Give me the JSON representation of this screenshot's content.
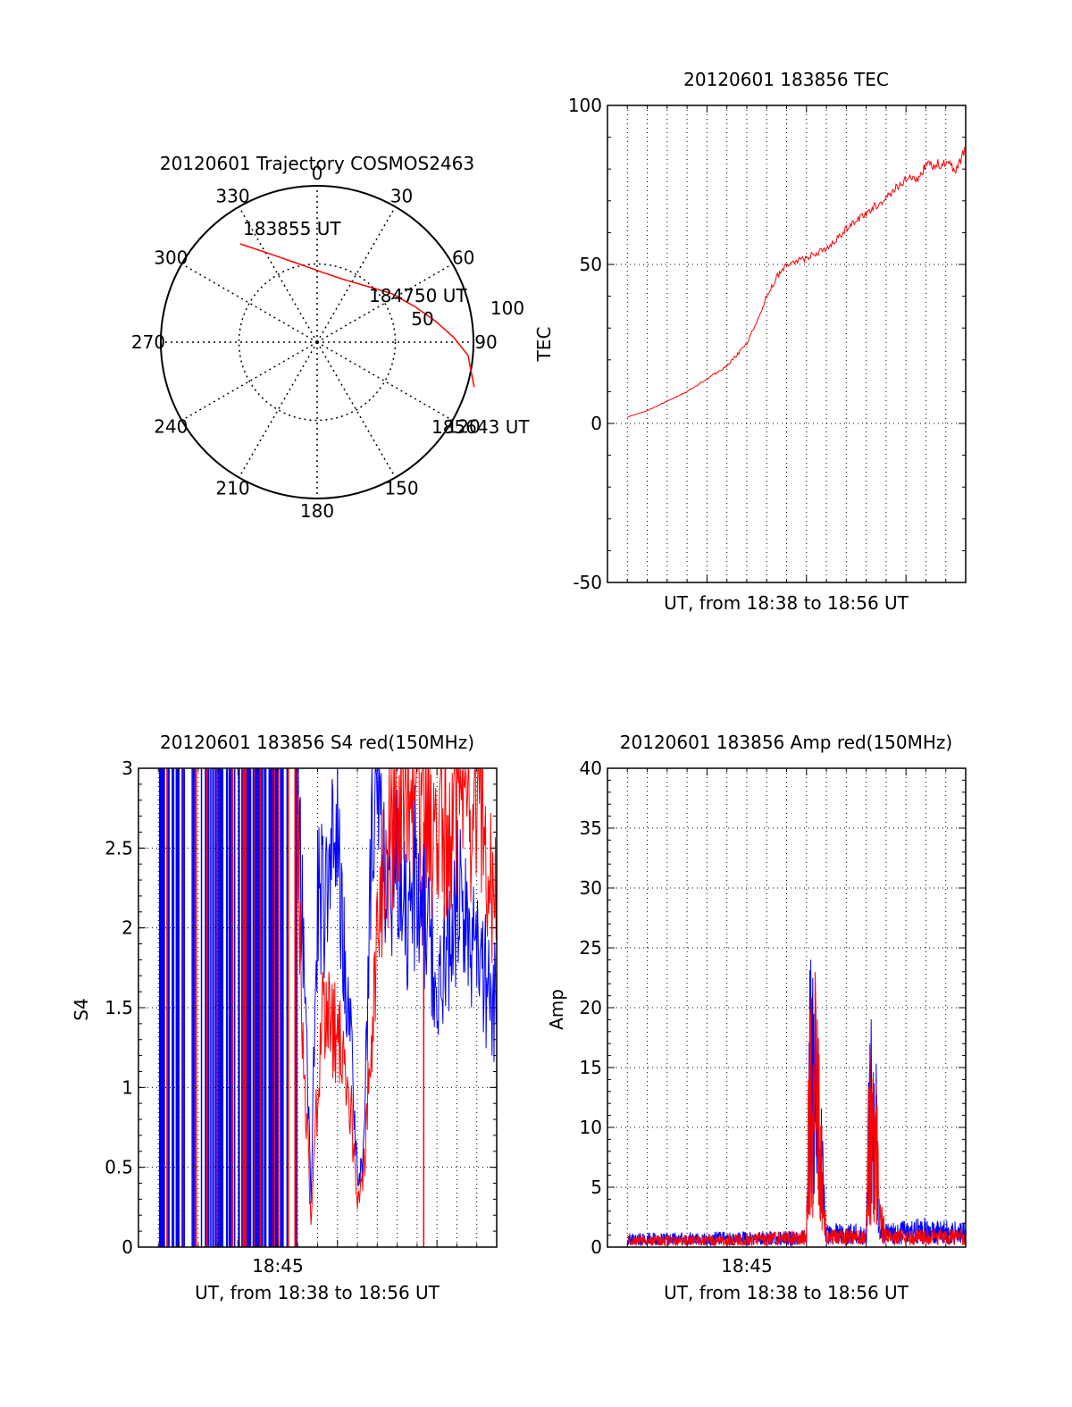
{
  "colors": {
    "trace_red": "#ff0000",
    "trace_blue": "#0000ff",
    "axis": "#000000",
    "grid": "#000000"
  },
  "chart_data": [
    {
      "type": "polar",
      "title": "20120601 Trajectory COSMOS2463",
      "azimuth_labels": [
        "0",
        "30",
        "60",
        "90",
        "120",
        "150",
        "180",
        "210",
        "240",
        "270",
        "300",
        "330"
      ],
      "radius_labels": [
        "50",
        "100"
      ],
      "trajectory": [
        {
          "az": 322,
          "zenith": 84
        },
        {
          "az": 333,
          "zenith": 66
        },
        {
          "az": 347,
          "zenith": 54
        },
        {
          "az": 5,
          "zenith": 47
        },
        {
          "az": 25,
          "zenith": 46
        },
        {
          "az": 43,
          "zenith": 51
        },
        {
          "az": 57,
          "zenith": 60
        },
        {
          "az": 70,
          "zenith": 70
        },
        {
          "az": 80,
          "zenith": 81
        },
        {
          "az": 88,
          "zenith": 92
        },
        {
          "az": 95,
          "zenith": 102
        },
        {
          "az": 106,
          "zenith": 116
        }
      ],
      "annotations": [
        {
          "text": "183855 UT",
          "az": 330,
          "zenith": 88
        },
        {
          "text": "184750 UT",
          "az": 58,
          "zenith": 67
        },
        {
          "text": "185643 UT",
          "az": 108,
          "zenith": 117
        }
      ]
    },
    {
      "type": "line",
      "title": "20120601 183856 TEC",
      "xlabel": "UT, from 18:38 to 18:56 UT",
      "ylabel": "TEC",
      "xlim": [
        "18:38",
        "18:56"
      ],
      "ylim": [
        -50,
        100
      ],
      "yticks": [
        "-50",
        "0",
        "50",
        "100"
      ],
      "grid": true,
      "series": [
        {
          "x": [
            "18:39:00",
            "18:40:00",
            "18:41:00",
            "18:42:00",
            "18:43:00",
            "18:44:00",
            "18:45:00",
            "18:45:30",
            "18:46:00",
            "18:46:30",
            "18:47:00",
            "18:47:30",
            "18:48:00",
            "18:49:00",
            "18:50:00",
            "18:51:00",
            "18:52:00",
            "18:53:00",
            "18:53:30",
            "18:54:00",
            "18:55:00",
            "18:55:30",
            "18:56:00"
          ],
          "values": [
            2,
            4,
            7,
            10,
            14,
            18,
            25,
            32,
            40,
            46,
            50,
            51,
            52,
            55,
            61,
            66,
            71,
            77,
            76,
            81,
            82,
            80,
            86
          ]
        }
      ]
    },
    {
      "type": "line",
      "title": "20120601 183856 S4 red(150MHz)",
      "xlabel": "UT, from 18:38 to 18:56 UT",
      "ylabel": "S4",
      "xlim": [
        "18:38",
        "18:56"
      ],
      "ylim": [
        0,
        3
      ],
      "yticks": [
        "0",
        "0.5",
        "1",
        "1.5",
        "2",
        "2.5",
        "3"
      ],
      "xticks": [
        "18:45"
      ],
      "grid": true,
      "series": [
        {
          "x": [
            "18:46:00",
            "18:46:20",
            "18:46:40",
            "18:47:00",
            "18:47:20",
            "18:47:40",
            "18:48:00",
            "18:48:20",
            "18:48:40",
            "18:49:00",
            "18:49:20",
            "18:49:40",
            "18:50:00",
            "18:50:30",
            "18:51:00",
            "18:51:30",
            "18:52:00",
            "18:53:00",
            "18:54:00",
            "18:55:00",
            "18:56:00"
          ],
          "values": [
            2.4,
            1.2,
            0.15,
            1.0,
            1.5,
            1.4,
            1.3,
            1.2,
            0.9,
            0.25,
            0.5,
            1.3,
            1.8,
            2.5,
            2.8,
            2.9,
            3.0,
            2.6,
            2.8,
            2.9,
            2.2
          ]
        },
        {
          "x": [
            "18:46:00",
            "18:46:20",
            "18:46:40",
            "18:47:00",
            "18:47:20",
            "18:47:40",
            "18:48:00",
            "18:48:20",
            "18:48:40",
            "18:49:00",
            "18:49:20",
            "18:49:40",
            "18:50:00",
            "18:50:30",
            "18:51:00",
            "18:51:30",
            "18:52:00",
            "18:53:00",
            "18:54:00",
            "18:55:00",
            "18:56:00"
          ],
          "values": [
            2.9,
            1.6,
            0.35,
            2.2,
            2.1,
            2.4,
            2.6,
            1.8,
            1.4,
            0.4,
            0.6,
            2.5,
            3.0,
            2.1,
            2.3,
            2.0,
            2.4,
            1.6,
            2.2,
            1.8,
            1.5
          ]
        }
      ]
    },
    {
      "type": "line",
      "title": "20120601 183856 Amp red(150MHz)",
      "xlabel": "UT, from 18:38 to 18:56 UT",
      "ylabel": "Amp",
      "xlim": [
        "18:38",
        "18:56"
      ],
      "ylim": [
        0,
        40
      ],
      "yticks": [
        "0",
        "5",
        "10",
        "15",
        "20",
        "25",
        "30",
        "35",
        "40"
      ],
      "xticks": [
        "18:45"
      ],
      "grid": true,
      "series": [
        {
          "x": [
            "18:39:00",
            "18:44:00",
            "18:48:00",
            "18:48:10",
            "18:48:20",
            "18:48:30",
            "18:48:40",
            "18:49:00",
            "18:50:00",
            "18:51:00",
            "18:51:10",
            "18:51:20",
            "18:51:30",
            "18:51:40",
            "18:52:00",
            "18:54:00",
            "18:56:00"
          ],
          "values": [
            1,
            1,
            1.5,
            25,
            24,
            26,
            14,
            1.5,
            1.5,
            1.5,
            18,
            17,
            16,
            5,
            1.5,
            1.5,
            1.5
          ]
        },
        {
          "x": [
            "18:39:00",
            "18:44:00",
            "18:48:00",
            "18:48:10",
            "18:48:20",
            "18:48:30",
            "18:48:40",
            "18:49:00",
            "18:50:00",
            "18:51:00",
            "18:51:10",
            "18:51:20",
            "18:51:30",
            "18:51:40",
            "18:52:00",
            "18:54:00",
            "18:56:00"
          ],
          "values": [
            1.2,
            1.3,
            1.4,
            25,
            23,
            22,
            15,
            2,
            2,
            2,
            20,
            19,
            17,
            3,
            2,
            2.5,
            2
          ]
        }
      ]
    }
  ]
}
